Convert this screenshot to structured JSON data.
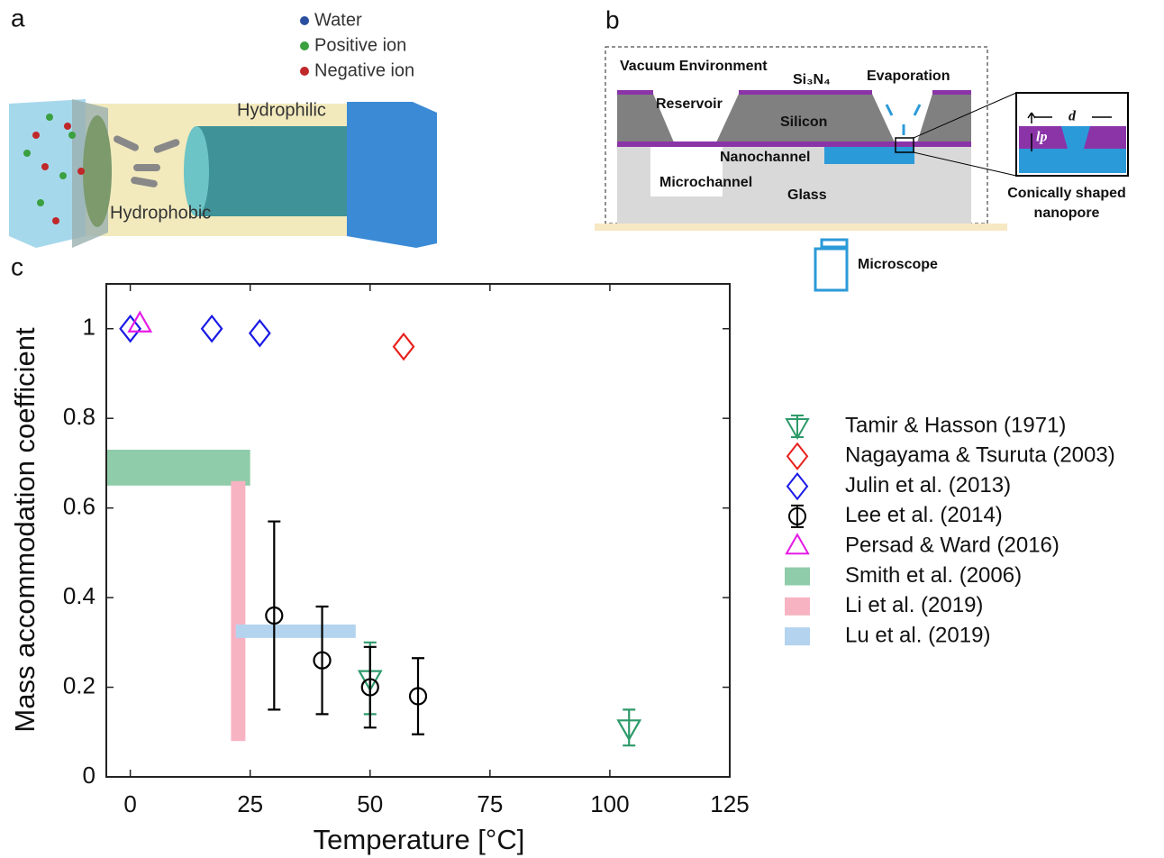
{
  "panel_labels": [
    "a",
    "b",
    "c"
  ],
  "diagram_a": {
    "legend": [
      "Water",
      "Positive ion",
      "Negative ion"
    ],
    "labels": [
      "Hydrophilic",
      "Hydrophobic"
    ]
  },
  "diagram_b": {
    "vacuum": "Vacuum Environment",
    "membrane": "Si₃N₄",
    "evaporation": "Evaporation",
    "reservoir": "Reservoir",
    "silicon": "Silicon",
    "nanochannel": "Nanochannel",
    "microchannel": "Microchannel",
    "glass": "Glass",
    "diameter": "d",
    "length": "lp",
    "nanopore": [
      "Conically shaped",
      "nanopore"
    ],
    "microscope": "Microscope"
  },
  "chart_data": {
    "type": "scatter",
    "x_label": "Temperature [°C]",
    "y_label": "Mass accommodation coefficient",
    "xlim": [
      -5,
      125
    ],
    "xticks": [
      0,
      25,
      50,
      75,
      100,
      125
    ],
    "ylim": [
      0,
      1.1
    ],
    "yticks": [
      0,
      0.2,
      0.4,
      0.6,
      0.8,
      1
    ],
    "series": [
      {
        "name": "Tamir & Hasson (1971)",
        "color": "#2e9a6a",
        "marker": "triangle-down",
        "x": [
          50,
          104
        ],
        "values": [
          0.22,
          0.11
        ],
        "errors": [
          0.08,
          0.04
        ]
      },
      {
        "name": "Nagayama & Tsuruta (2003)",
        "color": "#e8211d",
        "marker": "diamond",
        "x": [
          57
        ],
        "values": [
          0.96
        ]
      },
      {
        "name": "Julin et al. (2013)",
        "color": "#1a1ae6",
        "marker": "diamond",
        "x": [
          0,
          17,
          27
        ],
        "values": [
          1.0,
          1.0,
          0.99
        ]
      },
      {
        "name": "Lee et al. (2014)",
        "color": "#000000",
        "marker": "circle",
        "x": [
          30,
          40,
          50,
          60
        ],
        "values": [
          0.36,
          0.26,
          0.2,
          0.18
        ],
        "errors": [
          0.21,
          0.12,
          0.09,
          0.085
        ]
      },
      {
        "name": "Persad & Ward (2016)",
        "color": "#e619e6",
        "marker": "triangle-up",
        "x": [
          2
        ],
        "values": [
          1.01
        ]
      }
    ],
    "regions": [
      {
        "name": "Smith et al. (2006)",
        "color": "#8fcca9",
        "x": [
          -5,
          25
        ],
        "y": [
          0.65,
          0.73
        ]
      },
      {
        "name": "Li et al. (2019)",
        "color": "#f7b3c2",
        "x": [
          21,
          24
        ],
        "y": [
          0.08,
          0.66
        ]
      },
      {
        "name": "Lu et al. (2019)",
        "color": "#b3d3ef",
        "x": [
          22,
          47
        ],
        "y": [
          0.31,
          0.34
        ]
      }
    ]
  }
}
